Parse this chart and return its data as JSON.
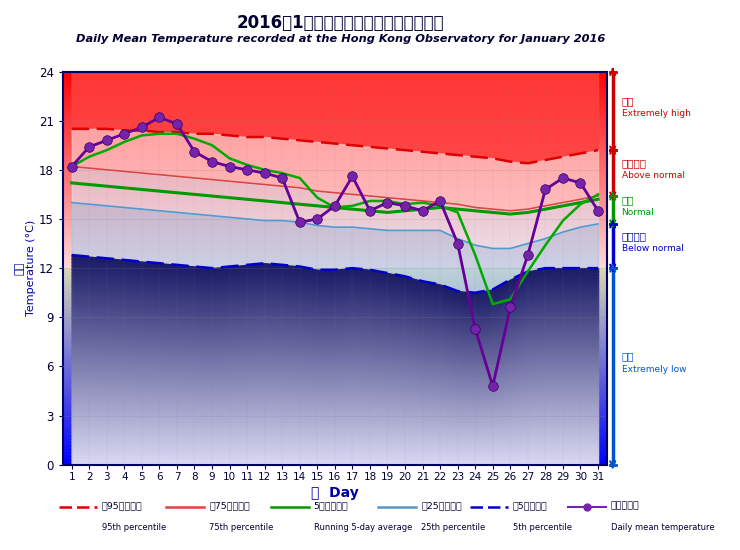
{
  "title_zh": "2016年1月香港天文台錄得的日平均氣溫",
  "title_en": "Daily Mean Temperature recorded at the Hong Kong Observatory for January 2016",
  "days": [
    1,
    2,
    3,
    4,
    5,
    6,
    7,
    8,
    9,
    10,
    11,
    12,
    13,
    14,
    15,
    16,
    17,
    18,
    19,
    20,
    21,
    22,
    23,
    24,
    25,
    26,
    27,
    28,
    29,
    30,
    31
  ],
  "daily_mean": [
    18.2,
    19.4,
    19.8,
    20.2,
    20.6,
    21.2,
    20.8,
    19.1,
    18.5,
    18.2,
    18.0,
    17.8,
    17.5,
    14.8,
    15.0,
    15.8,
    17.6,
    15.5,
    16.0,
    15.8,
    15.5,
    16.1,
    13.5,
    8.3,
    4.8,
    9.6,
    12.8,
    16.8,
    17.5,
    17.2,
    15.5
  ],
  "p95": [
    20.5,
    20.5,
    20.5,
    20.4,
    20.4,
    20.3,
    20.3,
    20.2,
    20.2,
    20.1,
    20.0,
    20.0,
    19.9,
    19.8,
    19.7,
    19.6,
    19.5,
    19.4,
    19.3,
    19.2,
    19.1,
    19.0,
    18.9,
    18.8,
    18.7,
    18.5,
    18.4,
    18.6,
    18.8,
    19.0,
    19.2
  ],
  "p75": [
    18.2,
    18.1,
    18.0,
    17.9,
    17.8,
    17.7,
    17.6,
    17.5,
    17.4,
    17.3,
    17.2,
    17.1,
    17.0,
    16.9,
    16.7,
    16.6,
    16.5,
    16.4,
    16.3,
    16.2,
    16.1,
    16.0,
    15.9,
    15.7,
    15.6,
    15.5,
    15.6,
    15.8,
    16.0,
    16.2,
    16.4
  ],
  "p50": [
    17.2,
    17.1,
    17.0,
    16.9,
    16.8,
    16.7,
    16.6,
    16.5,
    16.4,
    16.3,
    16.2,
    16.1,
    16.0,
    15.9,
    15.8,
    15.7,
    15.6,
    15.5,
    15.4,
    15.5,
    15.6,
    15.7,
    15.6,
    15.5,
    15.4,
    15.3,
    15.4,
    15.6,
    15.8,
    16.0,
    16.2
  ],
  "p25": [
    16.0,
    15.9,
    15.8,
    15.7,
    15.6,
    15.5,
    15.4,
    15.3,
    15.2,
    15.1,
    15.0,
    14.9,
    14.9,
    14.8,
    14.6,
    14.5,
    14.5,
    14.4,
    14.3,
    14.3,
    14.3,
    14.3,
    13.8,
    13.4,
    13.2,
    13.2,
    13.5,
    13.8,
    14.2,
    14.5,
    14.7
  ],
  "p5": [
    12.8,
    12.7,
    12.6,
    12.5,
    12.4,
    12.3,
    12.2,
    12.1,
    12.0,
    12.1,
    12.2,
    12.3,
    12.2,
    12.1,
    11.9,
    11.9,
    12.0,
    11.9,
    11.7,
    11.5,
    11.2,
    11.0,
    10.6,
    10.5,
    10.7,
    11.3,
    11.8,
    12.0,
    12.0,
    12.0,
    12.0
  ],
  "running5day": [
    18.2,
    18.8,
    19.2,
    19.7,
    20.1,
    20.2,
    20.2,
    19.9,
    19.5,
    18.7,
    18.3,
    18.0,
    17.8,
    17.5,
    16.3,
    15.7,
    15.8,
    16.1,
    16.1,
    15.9,
    16.0,
    15.8,
    15.4,
    12.8,
    9.8,
    10.1,
    11.8,
    13.4,
    14.9,
    15.9,
    16.5
  ],
  "ylim": [
    0,
    24
  ],
  "yticks": [
    0,
    3,
    6,
    9,
    12,
    15,
    18,
    21,
    24
  ]
}
